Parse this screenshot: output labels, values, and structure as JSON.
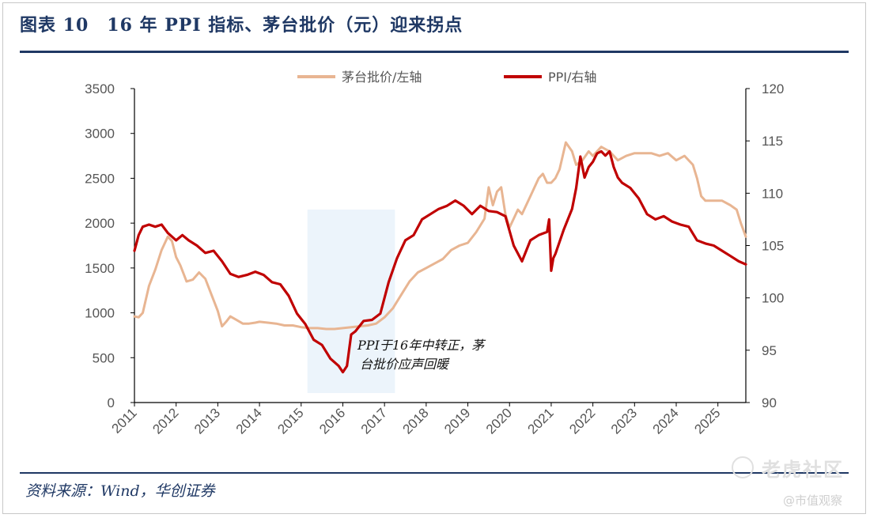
{
  "title": "图表 10　16 年 PPI 指标、茅台批价（元）迎来拐点",
  "source": "资料来源：Wind，华创证券",
  "watermark": {
    "main": "老虎社区",
    "sub": "@市值观察"
  },
  "colors": {
    "maotai": "#E8B592",
    "ppi": "#C00000",
    "highlight": "#DCEBF7",
    "title": "#1F3864"
  },
  "chart_data": {
    "type": "line",
    "title": "",
    "legend": {
      "position": "top-center",
      "entries": [
        "茅台批价/左轴",
        "PPI/右轴"
      ]
    },
    "annotation": {
      "lines": [
        "PPI于16年中转正，茅",
        "台批价应声回暖"
      ]
    },
    "highlight_x_range": [
      2015.0,
      2017.25
    ],
    "x_ticks": [
      "2011",
      "2012",
      "2013",
      "2014",
      "2015",
      "2016",
      "2017",
      "2018",
      "2019",
      "2020",
      "2021",
      "2022",
      "2023",
      "2024",
      "2025"
    ],
    "xlim": [
      2011.0,
      2025.67
    ],
    "y_left": {
      "ticks": [
        0,
        500,
        1000,
        1500,
        2000,
        2500,
        3000,
        3500
      ],
      "ylim": [
        0,
        3500
      ]
    },
    "y_right": {
      "ticks": [
        90,
        95,
        100,
        105,
        110,
        115,
        120
      ],
      "ylim": [
        90,
        120
      ]
    },
    "series": [
      {
        "name": "茅台批价/左轴",
        "axis": "left",
        "x": [
          2011.0,
          2011.1,
          2011.2,
          2011.35,
          2011.5,
          2011.65,
          2011.8,
          2011.9,
          2012.0,
          2012.1,
          2012.25,
          2012.4,
          2012.55,
          2012.7,
          2012.85,
          2013.0,
          2013.1,
          2013.2,
          2013.3,
          2013.45,
          2013.6,
          2013.75,
          2013.9,
          2014.0,
          2014.2,
          2014.4,
          2014.6,
          2014.8,
          2015.0,
          2015.2,
          2015.4,
          2015.6,
          2015.8,
          2016.0,
          2016.2,
          2016.4,
          2016.6,
          2016.8,
          2017.0,
          2017.2,
          2017.4,
          2017.6,
          2017.8,
          2018.0,
          2018.2,
          2018.4,
          2018.6,
          2018.8,
          2019.0,
          2019.2,
          2019.4,
          2019.5,
          2019.6,
          2019.7,
          2019.8,
          2019.9,
          2020.0,
          2020.1,
          2020.2,
          2020.3,
          2020.5,
          2020.7,
          2020.8,
          2020.9,
          2021.0,
          2021.1,
          2021.2,
          2021.35,
          2021.5,
          2021.6,
          2021.75,
          2021.9,
          2022.0,
          2022.2,
          2022.4,
          2022.6,
          2022.8,
          2023.0,
          2023.2,
          2023.4,
          2023.6,
          2023.8,
          2024.0,
          2024.2,
          2024.4,
          2024.5,
          2024.6,
          2024.7,
          2024.9,
          2025.1,
          2025.3,
          2025.45,
          2025.55,
          2025.67
        ],
        "values": [
          960,
          950,
          1000,
          1300,
          1480,
          1700,
          1850,
          1800,
          1620,
          1530,
          1350,
          1370,
          1450,
          1380,
          1200,
          1020,
          850,
          900,
          960,
          920,
          880,
          880,
          890,
          900,
          890,
          880,
          860,
          860,
          840,
          830,
          830,
          820,
          820,
          830,
          840,
          850,
          860,
          880,
          950,
          1050,
          1200,
          1350,
          1450,
          1500,
          1550,
          1600,
          1700,
          1750,
          1780,
          1900,
          2050,
          2400,
          2200,
          2350,
          2400,
          2100,
          1950,
          2050,
          2150,
          2100,
          2300,
          2500,
          2550,
          2450,
          2450,
          2500,
          2600,
          2900,
          2800,
          2650,
          2700,
          2800,
          2750,
          2850,
          2800,
          2700,
          2750,
          2780,
          2780,
          2780,
          2750,
          2780,
          2700,
          2750,
          2650,
          2500,
          2300,
          2250,
          2250,
          2250,
          2200,
          2150,
          2000,
          1850
        ]
      },
      {
        "name": "PPI/右轴",
        "axis": "right",
        "x": [
          2011.0,
          2011.1,
          2011.2,
          2011.35,
          2011.5,
          2011.65,
          2011.8,
          2012.0,
          2012.15,
          2012.3,
          2012.5,
          2012.7,
          2012.9,
          2013.1,
          2013.3,
          2013.5,
          2013.7,
          2013.9,
          2014.1,
          2014.3,
          2014.5,
          2014.7,
          2014.9,
          2015.1,
          2015.3,
          2015.5,
          2015.7,
          2015.9,
          2016.0,
          2016.1,
          2016.2,
          2016.3,
          2016.5,
          2016.7,
          2016.9,
          2017.1,
          2017.3,
          2017.5,
          2017.7,
          2017.9,
          2018.1,
          2018.3,
          2018.5,
          2018.7,
          2018.9,
          2019.1,
          2019.3,
          2019.5,
          2019.7,
          2019.9,
          2020.1,
          2020.3,
          2020.4,
          2020.5,
          2020.7,
          2020.9,
          2020.95,
          2021.0,
          2021.05,
          2021.1,
          2021.3,
          2021.5,
          2021.6,
          2021.7,
          2021.8,
          2021.9,
          2022.0,
          2022.1,
          2022.2,
          2022.3,
          2022.4,
          2022.5,
          2022.6,
          2022.7,
          2022.9,
          2023.1,
          2023.3,
          2023.5,
          2023.7,
          2023.9,
          2024.1,
          2024.3,
          2024.5,
          2024.7,
          2024.9,
          2025.1,
          2025.3,
          2025.5,
          2025.67
        ],
        "values": [
          104.5,
          106,
          106.8,
          107,
          106.8,
          107,
          106.2,
          105.5,
          106,
          105.5,
          105,
          104.3,
          104.5,
          103.5,
          102.3,
          102,
          102.2,
          102.5,
          102.2,
          101.5,
          101.3,
          100.2,
          98.5,
          97.5,
          96,
          95.5,
          94.2,
          93.5,
          92.9,
          93.5,
          96.5,
          96.8,
          97.8,
          97.9,
          98.5,
          101.5,
          103.8,
          105.5,
          106,
          107.5,
          108,
          108.5,
          108.8,
          109.3,
          108.8,
          108,
          108.8,
          108.3,
          108.2,
          107.8,
          105,
          103.5,
          104.5,
          105.5,
          106,
          106.3,
          107.5,
          102.6,
          103.8,
          104.2,
          106.5,
          108.5,
          110.5,
          113.5,
          111.5,
          112.5,
          113,
          113.8,
          114,
          113.6,
          114,
          112.5,
          111.5,
          111,
          110.5,
          109.5,
          108,
          107.5,
          107.8,
          107.3,
          107,
          106.8,
          105.5,
          105.2,
          105,
          104.5,
          104,
          103.5,
          103.2
        ]
      }
    ]
  }
}
